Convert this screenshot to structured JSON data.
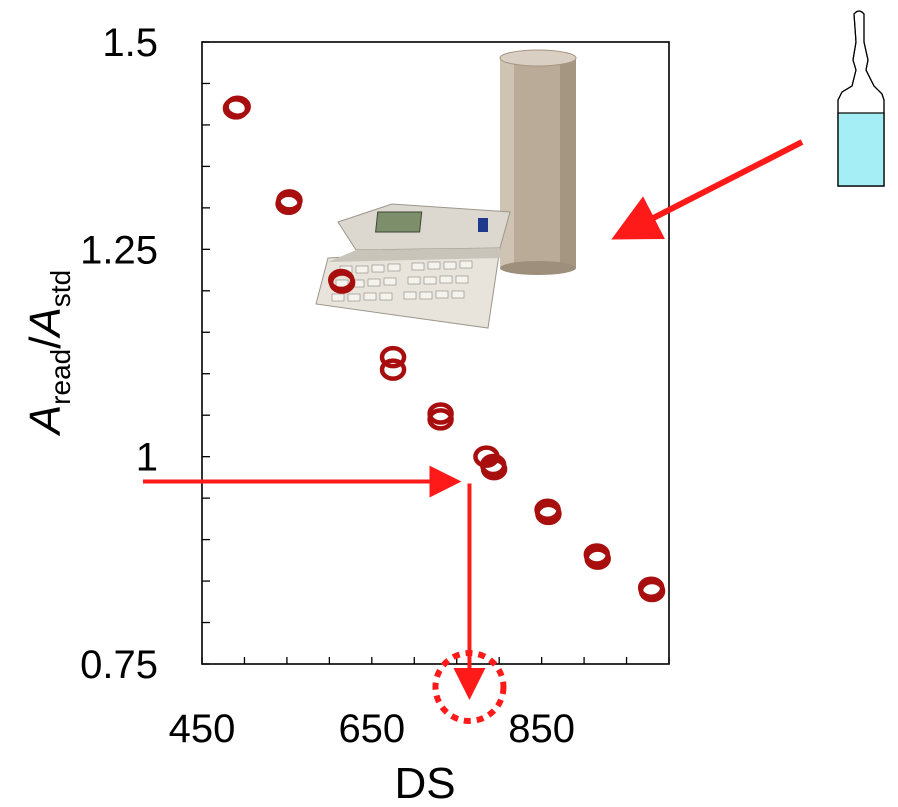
{
  "chart_data": {
    "type": "scatter",
    "title": "",
    "xlabel": "DS",
    "ylabel": {
      "symbol1": "A",
      "sub1": "read",
      "sep": "/",
      "symbol2": "A",
      "sub2": "std"
    },
    "xlim": [
      450,
      1000
    ],
    "ylim": [
      0.75,
      1.5
    ],
    "xticks": [
      450,
      650,
      850
    ],
    "yticks": [
      0.75,
      1,
      1.25,
      1.5
    ],
    "xtick_labels": [
      "450",
      "650",
      "850"
    ],
    "ytick_labels": [
      "0.75",
      "1",
      "1.25",
      "1.5"
    ],
    "x_minor_step": 50,
    "y_minor_step": 0.05,
    "marker_color": "#a80e0e",
    "annotation_color": "#ff1a1a",
    "points": [
      {
        "x": 490,
        "y": 1.42
      },
      {
        "x": 492,
        "y": 1.422
      },
      {
        "x": 552,
        "y": 1.305
      },
      {
        "x": 553,
        "y": 1.309
      },
      {
        "x": 614,
        "y": 1.213
      },
      {
        "x": 615,
        "y": 1.21
      },
      {
        "x": 675,
        "y": 1.12
      },
      {
        "x": 675,
        "y": 1.105
      },
      {
        "x": 731,
        "y": 1.052
      },
      {
        "x": 731,
        "y": 1.045
      },
      {
        "x": 785,
        "y": 1.0
      },
      {
        "x": 793,
        "y": 0.99
      },
      {
        "x": 794,
        "y": 0.985
      },
      {
        "x": 857,
        "y": 0.936
      },
      {
        "x": 858,
        "y": 0.931
      },
      {
        "x": 915,
        "y": 0.882
      },
      {
        "x": 916,
        "y": 0.877
      },
      {
        "x": 979,
        "y": 0.842
      },
      {
        "x": 980,
        "y": 0.838
      }
    ],
    "readout": {
      "y": 0.97,
      "x": 765
    }
  },
  "illustrations": {
    "instrument": "dose-calibrator-icon",
    "vial": "ampoule-icon"
  }
}
